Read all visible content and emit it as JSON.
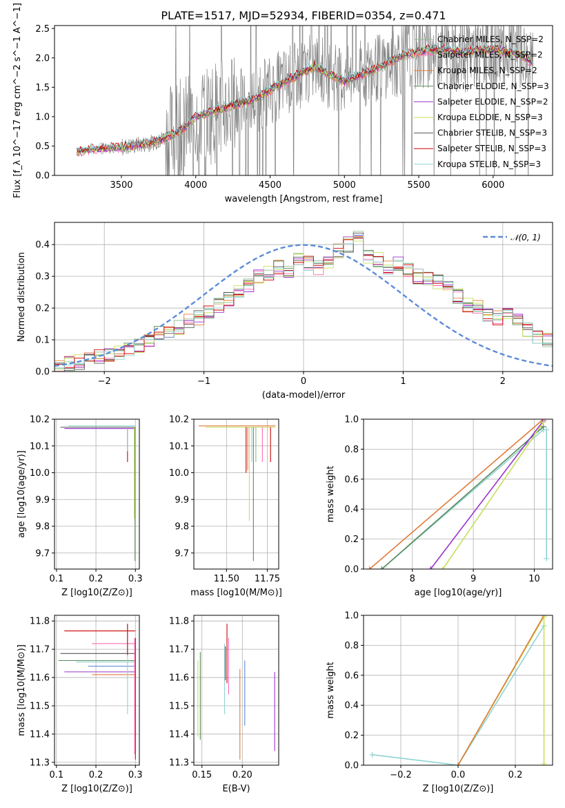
{
  "figure_title": "PLATE=1517, MJD=52934, FIBERID=0354, z=0.471",
  "colors": {
    "data_gray": "#808080",
    "chabrier_miles": "#8fbc8f",
    "salpeter_miles": "#ff69b4",
    "kroupa_miles": "#e07b39",
    "chabrier_elodie": "#5a8a5a",
    "salpeter_elodie": "#9932cc",
    "kroupa_elodie": "#c6e05a",
    "chabrier_stelib": "#555555",
    "salpeter_stelib": "#cc0000",
    "kroupa_stelib": "#8fd3d3",
    "normal": "#5b8bd9"
  },
  "chart_data": [
    {
      "id": "spectrum",
      "type": "line",
      "xlabel": "wavelength [Angstrom, rest frame]",
      "ylabel": "Flux [f_λ 10^−17 erg cm^−2 s^−1 A^−1]",
      "xlim": [
        3050,
        6400
      ],
      "ylim": [
        0,
        2.55
      ],
      "xticks": [
        "3500",
        "4000",
        "4500",
        "5000",
        "5500",
        "6000"
      ],
      "xtick_values": [
        3500,
        4000,
        4500,
        5000,
        5500,
        6000
      ],
      "yticks": [
        "0.0",
        "0.5",
        "1.0",
        "1.5",
        "2.0",
        "2.5"
      ],
      "ytick_values": [
        0,
        0.5,
        1.0,
        1.5,
        2.0,
        2.5
      ],
      "grid": false,
      "legend_position": "upper right",
      "continuum": [
        [
          3200,
          0.4
        ],
        [
          3300,
          0.45
        ],
        [
          3500,
          0.48
        ],
        [
          3700,
          0.55
        ],
        [
          3900,
          0.75
        ],
        [
          4000,
          1.0
        ],
        [
          4200,
          1.15
        ],
        [
          4400,
          1.3
        ],
        [
          4600,
          1.6
        ],
        [
          4800,
          1.85
        ],
        [
          5000,
          1.6
        ],
        [
          5200,
          1.8
        ],
        [
          5400,
          2.05
        ],
        [
          5600,
          2.15
        ],
        [
          5800,
          2.1
        ],
        [
          6000,
          2.15
        ],
        [
          6200,
          2.05
        ],
        [
          6270,
          1.9
        ]
      ],
      "series": [
        {
          "name": "Chabrier MILES, N_SSP=2",
          "color": "#8fbc8f"
        },
        {
          "name": "Salpeter MILES, N_SSP=2",
          "color": "#ff69b4"
        },
        {
          "name": "Kroupa MILES, N_SSP=2",
          "color": "#e07b39"
        },
        {
          "name": "Chabrier ELODIE, N_SSP=3",
          "color": "#5a8a5a"
        },
        {
          "name": "Salpeter ELODIE, N_SSP=2",
          "color": "#9932cc"
        },
        {
          "name": "Kroupa ELODIE, N_SSP=3",
          "color": "#c6e05a"
        },
        {
          "name": "Chabrier STELIB, N_SSP=3",
          "color": "#555555"
        },
        {
          "name": "Salpeter STELIB, N_SSP=3",
          "color": "#cc0000"
        },
        {
          "name": "Kroupa STELIB, N_SSP=3",
          "color": "#8fd3d3"
        }
      ]
    },
    {
      "id": "residuals",
      "type": "line",
      "xlabel": "(data-model)/error",
      "ylabel": "Normed distribution",
      "xlim": [
        -2.5,
        2.5
      ],
      "ylim": [
        0,
        0.47
      ],
      "xticks": [
        "−2",
        "−1",
        "0",
        "1",
        "2"
      ],
      "xtick_values": [
        -2,
        -1,
        0,
        1,
        2
      ],
      "yticks": [
        "0.0",
        "0.1",
        "0.2",
        "0.3",
        "0.4"
      ],
      "ytick_values": [
        0,
        0.1,
        0.2,
        0.3,
        0.4
      ],
      "grid": true,
      "legend_position": "upper right",
      "legend_label": "𝒩(0, 1)",
      "bin_edges_start": -2.5,
      "bin_width": 0.1,
      "hist_base": [
        0.02,
        0.025,
        0.03,
        0.04,
        0.045,
        0.05,
        0.06,
        0.075,
        0.085,
        0.1,
        0.12,
        0.13,
        0.14,
        0.16,
        0.17,
        0.19,
        0.21,
        0.23,
        0.25,
        0.27,
        0.3,
        0.31,
        0.33,
        0.31,
        0.35,
        0.34,
        0.33,
        0.34,
        0.38,
        0.4,
        0.42,
        0.36,
        0.35,
        0.33,
        0.34,
        0.32,
        0.3,
        0.29,
        0.28,
        0.26,
        0.24,
        0.21,
        0.2,
        0.18,
        0.17,
        0.19,
        0.16,
        0.13,
        0.11,
        0.1,
        0.08,
        0.09,
        0.06,
        0.05,
        0.05,
        0.04,
        0.07,
        0.06,
        0.04,
        0.035
      ]
    },
    {
      "id": "age_vs_Z",
      "type": "scatter",
      "xlabel": "Z [log10(Z/Z⊙)]",
      "ylabel": "age [log10(age/yr)]",
      "xlim": [
        0.095,
        0.31
      ],
      "ylim": [
        9.64,
        10.2
      ],
      "xticks": [
        "0.1",
        "0.2",
        "0.3"
      ],
      "xtick_values": [
        0.1,
        0.2,
        0.3
      ],
      "yticks": [
        "9.7",
        "9.8",
        "9.9",
        "10.0",
        "10.1",
        "10.2"
      ],
      "ytick_values": [
        9.7,
        9.8,
        9.9,
        10.0,
        10.1,
        10.2
      ],
      "grid": true,
      "segments": [
        {
          "x1": 0.11,
          "x2": 0.3,
          "y": 10.17,
          "color": "#555555"
        },
        {
          "x1": 0.12,
          "x2": 0.3,
          "y": 10.165,
          "color": "#9932cc"
        },
        {
          "x1": 0.13,
          "x2": 0.3,
          "y": 10.175,
          "color": "#8fd3d3"
        },
        {
          "x1": 0.28,
          "x2": 0.28,
          "y1": 10.17,
          "y2": 10.04,
          "color": "#cc0000"
        },
        {
          "x1": 0.28,
          "x2": 0.28,
          "y1": 10.17,
          "y2": 10.08,
          "color": "#8fd3d3"
        },
        {
          "x1": 0.297,
          "x2": 0.297,
          "y1": 10.17,
          "y2": 9.83,
          "color": "#c6e05a"
        },
        {
          "x1": 0.299,
          "x2": 0.299,
          "y1": 10.17,
          "y2": 9.67,
          "color": "#5a8a5a"
        }
      ]
    },
    {
      "id": "age_vs_mass",
      "type": "scatter",
      "xlabel": "mass [log10(M/M⊙)]",
      "ylabel": "",
      "xlim": [
        11.3,
        11.82
      ],
      "ylim": [
        9.64,
        10.2
      ],
      "xticks": [
        "11.50",
        "11.75"
      ],
      "xtick_values": [
        11.5,
        11.75
      ],
      "yticks": [
        "9.7",
        "9.8",
        "9.9",
        "10.0",
        "10.1",
        "10.2"
      ],
      "ytick_values": [
        9.7,
        9.8,
        9.9,
        10.0,
        10.1,
        10.2
      ],
      "grid": true,
      "segments": [
        {
          "x1": 11.33,
          "x2": 11.8,
          "y": 10.175,
          "color": "#e07b39"
        },
        {
          "x1": 11.37,
          "x2": 11.8,
          "y": 10.17,
          "color": "#c6e05a"
        },
        {
          "x1": 11.62,
          "x2": 11.62,
          "y1": 10.17,
          "y2": 10.0,
          "color": "#cc0000"
        },
        {
          "x1": 11.63,
          "x2": 11.63,
          "y1": 10.17,
          "y2": 10.01,
          "color": "#e07b39"
        },
        {
          "x1": 11.64,
          "x2": 11.64,
          "y1": 10.17,
          "y2": 9.82,
          "color": "#c6e05a"
        },
        {
          "x1": 11.655,
          "x2": 11.655,
          "y1": 10.17,
          "y2": 10.04,
          "color": "#8fd3d3"
        },
        {
          "x1": 11.665,
          "x2": 11.665,
          "y1": 10.17,
          "y2": 9.67,
          "color": "#5a8a5a"
        },
        {
          "x1": 11.68,
          "x2": 11.68,
          "y1": 10.17,
          "y2": 10.04,
          "color": "#8fbc8f"
        },
        {
          "x1": 11.72,
          "x2": 11.72,
          "y1": 10.17,
          "y2": 10.04,
          "color": "#ff69b4"
        },
        {
          "x1": 11.77,
          "x2": 11.77,
          "y1": 10.17,
          "y2": 10.04,
          "color": "#cc0000"
        }
      ]
    },
    {
      "id": "weight_vs_age",
      "type": "line",
      "xlabel": "age [log10(age/yr)]",
      "ylabel": "mass weight",
      "xlim": [
        7.2,
        10.3
      ],
      "ylim": [
        0,
        1.0
      ],
      "xticks": [
        "8",
        "9",
        "10"
      ],
      "xtick_values": [
        8,
        9,
        10
      ],
      "yticks": [
        "0.0",
        "0.2",
        "0.4",
        "0.6",
        "0.8",
        "1.0"
      ],
      "ytick_values": [
        0,
        0.2,
        0.4,
        0.6,
        0.8,
        1.0
      ],
      "grid": true,
      "lines": [
        {
          "points": [
            [
              7.3,
              0.0
            ],
            [
              10.15,
              1.0
            ]
          ],
          "color": "#e07b39"
        },
        {
          "points": [
            [
              7.5,
              0.0
            ],
            [
              10.15,
              0.93
            ]
          ],
          "color": "#8fd3d3"
        },
        {
          "points": [
            [
              7.5,
              0.0
            ],
            [
              10.15,
              0.95
            ]
          ],
          "color": "#5a8a5a"
        },
        {
          "points": [
            [
              8.3,
              0.0
            ],
            [
              10.15,
              0.99
            ]
          ],
          "color": "#9932cc"
        },
        {
          "points": [
            [
              8.5,
              0.0
            ],
            [
              10.15,
              0.98
            ]
          ],
          "color": "#c6e05a"
        },
        {
          "points": [
            [
              10.2,
              0.07
            ],
            [
              10.2,
              0.93
            ]
          ],
          "color": "#8fd3d3"
        }
      ]
    },
    {
      "id": "mass_vs_Z",
      "type": "scatter",
      "xlabel": "Z [log10(Z/Z⊙)]",
      "ylabel": "mass [log10(M/M⊙)]",
      "xlim": [
        0.095,
        0.31
      ],
      "ylim": [
        11.29,
        11.82
      ],
      "xticks": [
        "0.1",
        "0.2",
        "0.3"
      ],
      "xtick_values": [
        0.1,
        0.2,
        0.3
      ],
      "yticks": [
        "11.3",
        "11.4",
        "11.5",
        "11.6",
        "11.7",
        "11.8"
      ],
      "ytick_values": [
        11.3,
        11.4,
        11.5,
        11.6,
        11.7,
        11.8
      ],
      "grid": true,
      "segments": [
        {
          "x1": 0.12,
          "x2": 0.3,
          "y": 11.765,
          "color": "#cc0000"
        },
        {
          "x1": 0.19,
          "x2": 0.3,
          "y": 11.72,
          "color": "#ff69b4"
        },
        {
          "x1": 0.11,
          "x2": 0.3,
          "y": 11.685,
          "color": "#555555"
        },
        {
          "x1": 0.105,
          "x2": 0.3,
          "y": 11.66,
          "color": "#5a8a5a"
        },
        {
          "x1": 0.15,
          "x2": 0.3,
          "y": 11.655,
          "color": "#8fd3d3"
        },
        {
          "x1": 0.18,
          "x2": 0.3,
          "y": 11.64,
          "color": "#5b8bd9"
        },
        {
          "x1": 0.12,
          "x2": 0.3,
          "y": 11.62,
          "color": "#9932cc"
        },
        {
          "x1": 0.19,
          "x2": 0.3,
          "y": 11.61,
          "color": "#e07b39"
        },
        {
          "x1": 0.28,
          "x2": 0.28,
          "y1": 11.79,
          "y2": 11.47,
          "color": "#8fd3d3"
        },
        {
          "x1": 0.28,
          "x2": 0.28,
          "y1": 11.79,
          "y2": 11.68,
          "color": "#cc0000"
        },
        {
          "x1": 0.3,
          "x2": 0.3,
          "y1": 11.74,
          "y2": 11.31,
          "color": "#cc0000"
        },
        {
          "x1": 0.298,
          "x2": 0.298,
          "y1": 11.74,
          "y2": 11.33,
          "color": "#ff69b4"
        }
      ]
    },
    {
      "id": "mass_vs_ebv",
      "type": "scatter",
      "xlabel": "E(B-V)",
      "ylabel": "",
      "xlim": [
        0.14,
        0.245
      ],
      "ylim": [
        11.29,
        11.82
      ],
      "xticks": [
        "0.15",
        "0.20"
      ],
      "xtick_values": [
        0.15,
        0.2
      ],
      "yticks": [
        "11.3",
        "11.4",
        "11.5",
        "11.6",
        "11.7",
        "11.8"
      ],
      "ytick_values": [
        11.3,
        11.4,
        11.5,
        11.6,
        11.7,
        11.8
      ],
      "grid": true,
      "segments": [
        {
          "x1": 0.145,
          "x2": 0.145,
          "y1": 11.66,
          "y2": 11.39,
          "color": "#c6e05a"
        },
        {
          "x1": 0.148,
          "x2": 0.148,
          "y1": 11.69,
          "y2": 11.38,
          "color": "#5a8a5a"
        },
        {
          "x1": 0.178,
          "x2": 0.178,
          "y1": 11.72,
          "y2": 11.47,
          "color": "#8fd3d3"
        },
        {
          "x1": 0.179,
          "x2": 0.179,
          "y1": 11.71,
          "y2": 11.59,
          "color": "#555555"
        },
        {
          "x1": 0.181,
          "x2": 0.181,
          "y1": 11.79,
          "y2": 11.58,
          "color": "#cc0000"
        },
        {
          "x1": 0.183,
          "x2": 0.183,
          "y1": 11.74,
          "y2": 11.54,
          "color": "#ff69b4"
        },
        {
          "x1": 0.197,
          "x2": 0.197,
          "y1": 11.63,
          "y2": 11.31,
          "color": "#e07b39"
        },
        {
          "x1": 0.203,
          "x2": 0.203,
          "y1": 11.66,
          "y2": 11.43,
          "color": "#5b8bd9"
        },
        {
          "x1": 0.24,
          "x2": 0.24,
          "y1": 11.62,
          "y2": 11.34,
          "color": "#9932cc"
        }
      ]
    },
    {
      "id": "weight_vs_Z",
      "type": "line",
      "xlabel": "Z [log10(Z/Z⊙)]",
      "ylabel": "mass weight",
      "xlim": [
        -0.33,
        0.33
      ],
      "ylim": [
        0,
        1.0
      ],
      "xticks": [
        "−0.2",
        "0.0",
        "0.2"
      ],
      "xtick_values": [
        -0.2,
        0.0,
        0.2
      ],
      "yticks": [
        "0.0",
        "0.2",
        "0.4",
        "0.6",
        "0.8",
        "1.0"
      ],
      "ytick_values": [
        0,
        0.2,
        0.4,
        0.6,
        0.8,
        1.0
      ],
      "grid": true,
      "lines": [
        {
          "points": [
            [
              -0.3,
              0.07
            ],
            [
              0.0,
              0.0
            ],
            [
              0.3,
              0.93
            ]
          ],
          "color": "#8fd3d3"
        },
        {
          "points": [
            [
              0.0,
              0.0
            ],
            [
              0.3,
              0.99
            ]
          ],
          "color": "#c6e05a"
        },
        {
          "points": [
            [
              0.0,
              0.0
            ],
            [
              0.3,
              1.0
            ]
          ],
          "color": "#e07b39"
        },
        {
          "points": [
            [
              0.3,
              0.01
            ],
            [
              0.3,
              1.0
            ]
          ],
          "color": "#c6e05a"
        }
      ]
    }
  ]
}
